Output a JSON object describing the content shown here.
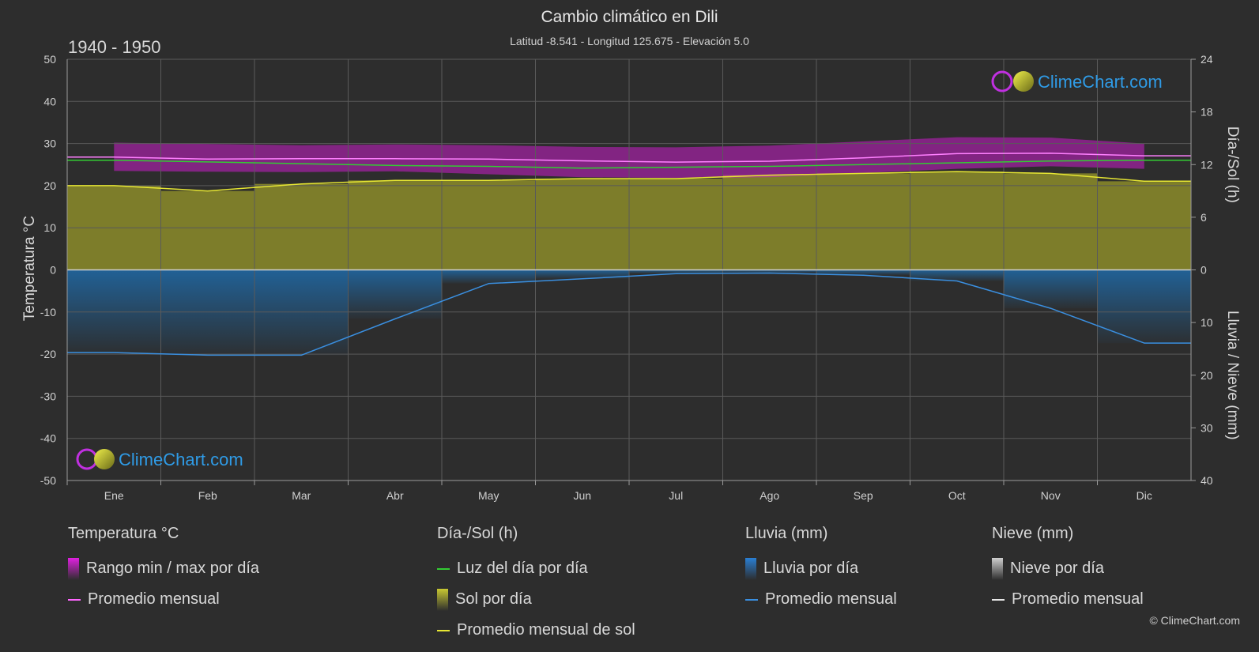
{
  "header": {
    "title": "Cambio climático en Dili",
    "subtitle": "Latitud -8.541 - Longitud 125.675 - Elevación 5.0",
    "period": "1940 - 1950",
    "copyright": "© ClimeChart.com"
  },
  "watermark": {
    "text": "ClimeChart.com"
  },
  "chart_data": {
    "type": "area",
    "categories": [
      "Ene",
      "Feb",
      "Mar",
      "Abr",
      "May",
      "Jun",
      "Jul",
      "Ago",
      "Sep",
      "Oct",
      "Nov",
      "Dic"
    ],
    "axes": {
      "left": {
        "label": "Temperatura °C",
        "range": [
          -50,
          50
        ],
        "ticks": [
          50,
          40,
          30,
          20,
          10,
          0,
          -10,
          -20,
          -30,
          -40,
          -50
        ]
      },
      "right_top": {
        "label": "Día-/Sol (h)",
        "range": [
          0,
          24
        ],
        "ticks": [
          24,
          18,
          12,
          6,
          0
        ]
      },
      "right_bottom": {
        "label": "Lluvia / Nieve (mm)",
        "range": [
          0,
          40
        ],
        "ticks": [
          0,
          10,
          20,
          30,
          40
        ]
      }
    },
    "grid": true,
    "series": [
      {
        "name": "Rango min / max por día",
        "unit": "°C",
        "max": [
          30.2,
          29.9,
          29.6,
          29.8,
          29.6,
          29.2,
          29.1,
          29.5,
          30.5,
          31.5,
          31.4,
          30.0
        ],
        "min": [
          23.5,
          23.3,
          23.2,
          23.4,
          22.7,
          22.0,
          21.8,
          22.0,
          23.0,
          24.0,
          24.6,
          24.0
        ]
      },
      {
        "name": "Promedio mensual",
        "kind": "temperature",
        "unit": "°C",
        "values": [
          26.8,
          26.3,
          26.4,
          26.4,
          26.3,
          25.9,
          25.6,
          25.8,
          26.6,
          27.6,
          27.7,
          27.1
        ]
      },
      {
        "name": "Luz del día por día",
        "unit": "h",
        "values": [
          12.5,
          12.3,
          12.1,
          11.9,
          11.8,
          11.6,
          11.7,
          11.8,
          12.0,
          12.2,
          12.4,
          12.5
        ]
      },
      {
        "name": "Sol por día",
        "unit": "h",
        "values": [
          9.6,
          9.0,
          9.8,
          10.2,
          10.2,
          10.4,
          10.4,
          10.8,
          11.0,
          11.2,
          11.0,
          10.1
        ]
      },
      {
        "name": "Promedio mensual de sol",
        "unit": "h",
        "values": [
          9.6,
          9.0,
          9.8,
          10.2,
          10.2,
          10.4,
          10.4,
          10.8,
          11.0,
          11.2,
          11.0,
          10.1
        ]
      },
      {
        "name": "Lluvia por día",
        "unit": "mm",
        "values": [
          15.7,
          16.2,
          16.2,
          9.3,
          2.6,
          1.7,
          0.7,
          0.6,
          1.0,
          2.1,
          7.3,
          13.9
        ]
      },
      {
        "name": "Promedio mensual",
        "kind": "rain",
        "unit": "mm",
        "values": [
          15.7,
          16.2,
          16.2,
          9.3,
          2.6,
          1.7,
          0.7,
          0.6,
          1.0,
          2.1,
          7.3,
          13.9
        ]
      },
      {
        "name": "Nieve por día",
        "unit": "mm",
        "values": [
          0,
          0,
          0,
          0,
          0,
          0,
          0,
          0,
          0,
          0,
          0,
          0
        ]
      },
      {
        "name": "Promedio mensual",
        "kind": "snow",
        "unit": "mm",
        "values": [
          0,
          0,
          0,
          0,
          0,
          0,
          0,
          0,
          0,
          0,
          0,
          0
        ]
      }
    ]
  },
  "legend": {
    "groups": [
      {
        "title": "Temperatura °C",
        "items": [
          {
            "label": "Rango min / max por día",
            "swatch": "rect",
            "color": "#e020e0"
          },
          {
            "label": "Promedio mensual",
            "swatch": "line",
            "color": "#ff66ff"
          }
        ]
      },
      {
        "title": "Día-/Sol (h)",
        "items": [
          {
            "label": "Luz del día por día",
            "swatch": "line",
            "color": "#33cc33"
          },
          {
            "label": "Sol por día",
            "swatch": "rect",
            "color": "#c8c832"
          },
          {
            "label": "Promedio mensual de sol",
            "swatch": "line",
            "color": "#e6e633"
          }
        ]
      },
      {
        "title": "Lluvia (mm)",
        "items": [
          {
            "label": "Lluvia por día",
            "swatch": "rect",
            "color": "#2a7fd4"
          },
          {
            "label": "Promedio mensual",
            "swatch": "line",
            "color": "#3a8fe0"
          }
        ]
      },
      {
        "title": "Nieve (mm)",
        "items": [
          {
            "label": "Nieve por día",
            "swatch": "rect",
            "color": "#cfcfcf"
          },
          {
            "label": "Promedio mensual",
            "swatch": "line",
            "color": "#e6e6e6"
          }
        ]
      }
    ]
  },
  "colors": {
    "background": "#2d2d2d",
    "temp_range": "#c81ec8",
    "temp_avg": "#ff80ff",
    "daylight": "#33cc33",
    "sunshine": "#8c8c2a",
    "sun_avg": "#e6e633",
    "rain": "#1f5f99",
    "rain_avg": "#3a8fe0",
    "watermark": "#2f9be6"
  }
}
